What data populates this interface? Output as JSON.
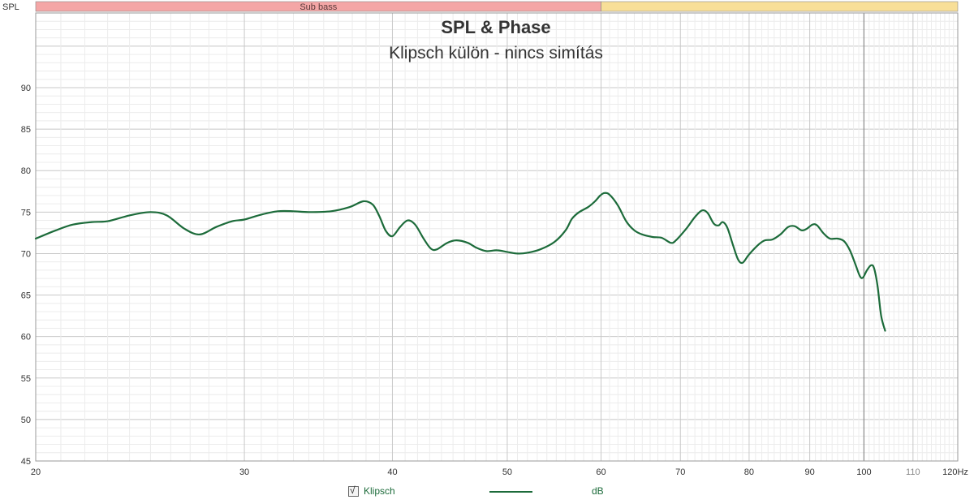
{
  "chart_data": {
    "type": "line",
    "title": "SPL & Phase",
    "subtitle": "Klipsch külön - nincs simítás",
    "ylabel": "SPL",
    "x_unit": "Hz",
    "x_scale": "log",
    "xlim": [
      20,
      120
    ],
    "ylim": [
      45,
      99
    ],
    "grid": true,
    "x_major_ticks": [
      20,
      30,
      40,
      50,
      60,
      70,
      80,
      90,
      100
    ],
    "x_minor_ticks": [
      110
    ],
    "y_ticks": [
      45,
      50,
      55,
      60,
      65,
      70,
      75,
      80,
      85,
      90
    ],
    "x_tick_labels": [
      "20",
      "30",
      "40",
      "50",
      "60",
      "70",
      "80",
      "90",
      "100"
    ],
    "x_minor_tick_labels": [
      "110"
    ],
    "x_end_label": "120Hz",
    "y_tick_labels": [
      "45",
      "50",
      "55",
      "60",
      "65",
      "70",
      "75",
      "80",
      "85",
      "90"
    ],
    "bands": [
      {
        "label": "Sub bass",
        "from": 20,
        "to": 60,
        "color": "#f4a6a6"
      },
      {
        "label": "",
        "from": 60,
        "to": 120,
        "color": "#f8df98"
      }
    ],
    "series": [
      {
        "name": "Klipsch",
        "unit": "dB",
        "color": "#1c6b3a",
        "points": [
          [
            20.0,
            71.8
          ],
          [
            20.8,
            72.8
          ],
          [
            21.5,
            73.5
          ],
          [
            22.3,
            73.8
          ],
          [
            23.0,
            73.9
          ],
          [
            24.0,
            74.6
          ],
          [
            25.0,
            75.0
          ],
          [
            25.8,
            74.6
          ],
          [
            26.7,
            73.0
          ],
          [
            27.5,
            72.3
          ],
          [
            28.4,
            73.2
          ],
          [
            29.3,
            73.9
          ],
          [
            30.0,
            74.1
          ],
          [
            31.0,
            74.7
          ],
          [
            32.0,
            75.1
          ],
          [
            33.0,
            75.1
          ],
          [
            34.0,
            75.0
          ],
          [
            35.5,
            75.1
          ],
          [
            36.8,
            75.6
          ],
          [
            37.8,
            76.3
          ],
          [
            38.5,
            75.9
          ],
          [
            39.0,
            74.5
          ],
          [
            39.5,
            72.7
          ],
          [
            40.0,
            72.1
          ],
          [
            40.6,
            73.2
          ],
          [
            41.2,
            74.0
          ],
          [
            41.8,
            73.5
          ],
          [
            42.5,
            71.8
          ],
          [
            43.1,
            70.6
          ],
          [
            43.6,
            70.5
          ],
          [
            44.5,
            71.3
          ],
          [
            45.3,
            71.6
          ],
          [
            46.3,
            71.3
          ],
          [
            47.1,
            70.7
          ],
          [
            48.0,
            70.3
          ],
          [
            49.0,
            70.4
          ],
          [
            50.0,
            70.2
          ],
          [
            51.0,
            70.0
          ],
          [
            52.0,
            70.1
          ],
          [
            53.3,
            70.5
          ],
          [
            54.8,
            71.4
          ],
          [
            56.0,
            72.8
          ],
          [
            56.7,
            74.2
          ],
          [
            57.5,
            75.0
          ],
          [
            58.5,
            75.6
          ],
          [
            59.3,
            76.3
          ],
          [
            59.9,
            77.0
          ],
          [
            60.4,
            77.3
          ],
          [
            61.0,
            77.1
          ],
          [
            62.0,
            75.8
          ],
          [
            63.0,
            73.9
          ],
          [
            64.0,
            72.8
          ],
          [
            65.0,
            72.3
          ],
          [
            66.3,
            72.0
          ],
          [
            67.5,
            71.9
          ],
          [
            68.7,
            71.3
          ],
          [
            69.4,
            71.6
          ],
          [
            70.8,
            73.0
          ],
          [
            72.0,
            74.4
          ],
          [
            73.0,
            75.2
          ],
          [
            73.8,
            74.9
          ],
          [
            74.7,
            73.6
          ],
          [
            75.4,
            73.4
          ],
          [
            76.0,
            73.8
          ],
          [
            76.7,
            73.1
          ],
          [
            77.5,
            71.1
          ],
          [
            78.3,
            69.3
          ],
          [
            79.0,
            68.9
          ],
          [
            80.0,
            69.9
          ],
          [
            81.5,
            71.1
          ],
          [
            82.5,
            71.6
          ],
          [
            83.7,
            71.7
          ],
          [
            85.0,
            72.3
          ],
          [
            86.3,
            73.2
          ],
          [
            87.4,
            73.3
          ],
          [
            88.6,
            72.8
          ],
          [
            89.5,
            73.0
          ],
          [
            90.5,
            73.5
          ],
          [
            91.3,
            73.4
          ],
          [
            92.5,
            72.4
          ],
          [
            93.6,
            71.8
          ],
          [
            95.0,
            71.8
          ],
          [
            96.2,
            71.5
          ],
          [
            97.3,
            70.4
          ],
          [
            98.3,
            68.8
          ],
          [
            99.2,
            67.3
          ],
          [
            99.8,
            67.1
          ],
          [
            100.6,
            68.0
          ],
          [
            101.4,
            68.6
          ],
          [
            102.0,
            68.2
          ],
          [
            102.7,
            66.0
          ],
          [
            103.4,
            62.5
          ],
          [
            104.2,
            60.7
          ]
        ]
      }
    ]
  },
  "legend": {
    "checked": "√",
    "label": "Klipsch",
    "unit": "dB"
  }
}
